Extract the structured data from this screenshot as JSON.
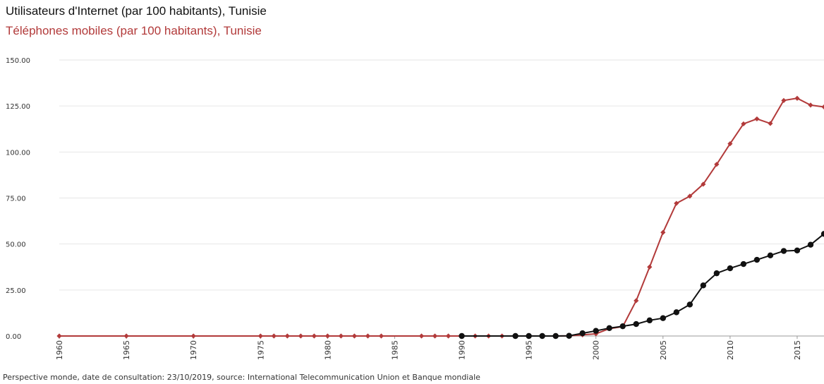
{
  "chart_data": {
    "type": "line",
    "titles": [
      "Utilisateurs d'Internet (par 100 habitants), Tunisie",
      "Téléphones mobiles (par 100 habitants), Tunisie"
    ],
    "footer": "Perspective monde, date de consultation: 23/10/2019, source: International Telecommunication Union et Banque mondiale",
    "ylim": [
      0,
      150
    ],
    "yticks": [
      "0.00",
      "25.00",
      "50.00",
      "75.00",
      "100.00",
      "125.00",
      "150.00"
    ],
    "xlim": [
      1960,
      2017
    ],
    "xticks": [
      "1960",
      "1965",
      "1970",
      "1975",
      "1980",
      "1985",
      "1990",
      "1995",
      "2000",
      "2005",
      "2010",
      "2015"
    ],
    "grid": "horizontal",
    "series": [
      {
        "name": "Téléphones mobiles (par 100 habitants), Tunisie",
        "color": "#b23a3a",
        "marker": "diamond",
        "x": [
          1960,
          1965,
          1970,
          1975,
          1976,
          1977,
          1978,
          1979,
          1980,
          1981,
          1982,
          1983,
          1984,
          1987,
          1988,
          1989,
          1990,
          1991,
          1992,
          1993,
          1994,
          1995,
          1996,
          1997,
          1998,
          1999,
          2000,
          2001,
          2002,
          2003,
          2004,
          2005,
          2006,
          2007,
          2008,
          2009,
          2010,
          2011,
          2012,
          2013,
          2014,
          2015,
          2016,
          2017
        ],
        "y": [
          0,
          0,
          0,
          0,
          0,
          0,
          0,
          0,
          0,
          0,
          0,
          0,
          0,
          0,
          0,
          0,
          0,
          0,
          0,
          0,
          0,
          0,
          0,
          0,
          0.1,
          0.6,
          1.2,
          4,
          5.1,
          19.2,
          37.5,
          56.3,
          72.1,
          76,
          82.5,
          93.3,
          104.5,
          115.3,
          118,
          115.5,
          128,
          129.2,
          125.5,
          124.5
        ]
      },
      {
        "name": "Utilisateurs d'Internet (par 100 habitants), Tunisie",
        "color": "#111111",
        "marker": "circle",
        "x": [
          1990,
          1994,
          1995,
          1996,
          1997,
          1998,
          1999,
          2000,
          2001,
          2002,
          2003,
          2004,
          2005,
          2006,
          2007,
          2008,
          2009,
          2010,
          2011,
          2012,
          2013,
          2014,
          2015,
          2016,
          2017
        ],
        "y": [
          0,
          0,
          0,
          0,
          0,
          0.1,
          1.5,
          2.8,
          4.3,
          5.3,
          6.5,
          8.5,
          9.7,
          12.9,
          17.1,
          27.5,
          34.1,
          36.8,
          39.1,
          41.4,
          43.8,
          46.2,
          46.5,
          49.6,
          55.5
        ]
      }
    ]
  }
}
